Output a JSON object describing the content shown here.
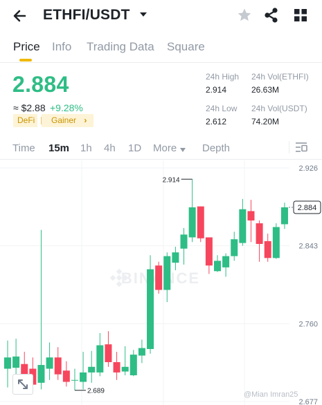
{
  "header": {
    "pair": "ETHFI/USDT",
    "icons": [
      "back-arrow-icon",
      "caret-down-icon",
      "star-icon",
      "share-icon",
      "grid-icon"
    ]
  },
  "tabs": [
    {
      "label": "Price",
      "active": true
    },
    {
      "label": "Info",
      "active": false
    },
    {
      "label": "Trading Data",
      "active": false
    },
    {
      "label": "Square",
      "active": false
    }
  ],
  "price": {
    "last": "2.884",
    "fiat": "≈ $2.88",
    "change": "+9.28%",
    "tags": [
      "DeFi",
      "Gainer"
    ],
    "tag_arrow": "›"
  },
  "stats": {
    "high_label": "24h High",
    "high_value": "2.914",
    "low_label": "24h Low",
    "low_value": "2.612",
    "vol_base_label": "24h Vol(ETHFI)",
    "vol_base_value": "26.63M",
    "vol_quote_label": "24h Vol(USDT)",
    "vol_quote_value": "74.20M"
  },
  "intervals": {
    "items": [
      "Time",
      "15m",
      "1h",
      "4h",
      "1D",
      "More"
    ],
    "active": "15m",
    "depth": "Depth"
  },
  "colors": {
    "up": "#2ebd85",
    "down": "#f6465d",
    "accent": "#f0b90b",
    "muted": "#929aa5"
  },
  "chart_data": {
    "type": "candlestick",
    "interval": "15m",
    "y_ticks": [
      2.926,
      2.843,
      2.76,
      2.677
    ],
    "ylim": [
      2.66,
      2.94
    ],
    "last_price_label": "2.884",
    "high_marker": {
      "label": "2.914",
      "value": 2.914
    },
    "low_marker": {
      "label": "2.689",
      "value": 2.689
    },
    "watermark": "BINANCE",
    "candles": [
      {
        "open": 2.712,
        "high": 2.742,
        "low": 2.692,
        "close": 2.724
      },
      {
        "open": 2.713,
        "high": 2.744,
        "low": 2.698,
        "close": 2.725
      },
      {
        "open": 2.717,
        "high": 2.73,
        "low": 2.698,
        "close": 2.702
      },
      {
        "open": 2.712,
        "high": 2.724,
        "low": 2.69,
        "close": 2.695
      },
      {
        "open": 2.697,
        "high": 2.86,
        "low": 2.69,
        "close": 2.716
      },
      {
        "open": 2.712,
        "high": 2.74,
        "low": 2.7,
        "close": 2.724
      },
      {
        "open": 2.724,
        "high": 2.735,
        "low": 2.7,
        "close": 2.706
      },
      {
        "open": 2.71,
        "high": 2.72,
        "low": 2.693,
        "close": 2.698
      },
      {
        "open": 2.7,
        "high": 2.712,
        "low": 2.689,
        "close": 2.7
      },
      {
        "open": 2.698,
        "high": 2.73,
        "low": 2.69,
        "close": 2.708
      },
      {
        "open": 2.708,
        "high": 2.731,
        "low": 2.697,
        "close": 2.714
      },
      {
        "open": 2.708,
        "high": 2.75,
        "low": 2.704,
        "close": 2.737
      },
      {
        "open": 2.738,
        "high": 2.752,
        "low": 2.714,
        "close": 2.719
      },
      {
        "open": 2.719,
        "high": 2.73,
        "low": 2.7,
        "close": 2.708
      },
      {
        "open": 2.709,
        "high": 2.736,
        "low": 2.705,
        "close": 2.714
      },
      {
        "open": 2.705,
        "high": 2.732,
        "low": 2.704,
        "close": 2.727
      },
      {
        "open": 2.726,
        "high": 2.743,
        "low": 2.718,
        "close": 2.734
      },
      {
        "open": 2.733,
        "high": 2.833,
        "low": 2.728,
        "close": 2.818
      },
      {
        "open": 2.822,
        "high": 2.826,
        "low": 2.792,
        "close": 2.796
      },
      {
        "open": 2.796,
        "high": 2.836,
        "low": 2.783,
        "close": 2.832
      },
      {
        "open": 2.825,
        "high": 2.842,
        "low": 2.817,
        "close": 2.836
      },
      {
        "open": 2.84,
        "high": 2.862,
        "low": 2.823,
        "close": 2.855
      },
      {
        "open": 2.852,
        "high": 2.914,
        "low": 2.847,
        "close": 2.884
      },
      {
        "open": 2.885,
        "high": 2.885,
        "low": 2.847,
        "close": 2.851
      },
      {
        "open": 2.852,
        "high": 2.852,
        "low": 2.813,
        "close": 2.822
      },
      {
        "open": 2.816,
        "high": 2.833,
        "low": 2.815,
        "close": 2.827
      },
      {
        "open": 2.82,
        "high": 2.835,
        "low": 2.81,
        "close": 2.832
      },
      {
        "open": 2.832,
        "high": 2.858,
        "low": 2.827,
        "close": 2.85
      },
      {
        "open": 2.846,
        "high": 2.893,
        "low": 2.843,
        "close": 2.882
      },
      {
        "open": 2.88,
        "high": 2.892,
        "low": 2.847,
        "close": 2.87
      },
      {
        "open": 2.867,
        "high": 2.87,
        "low": 2.826,
        "close": 2.845
      },
      {
        "open": 2.848,
        "high": 2.856,
        "low": 2.826,
        "close": 2.83
      },
      {
        "open": 2.83,
        "high": 2.867,
        "low": 2.829,
        "close": 2.863
      },
      {
        "open": 2.866,
        "high": 2.889,
        "low": 2.861,
        "close": 2.884
      }
    ]
  },
  "watermark_text": "@Mian Imran25"
}
